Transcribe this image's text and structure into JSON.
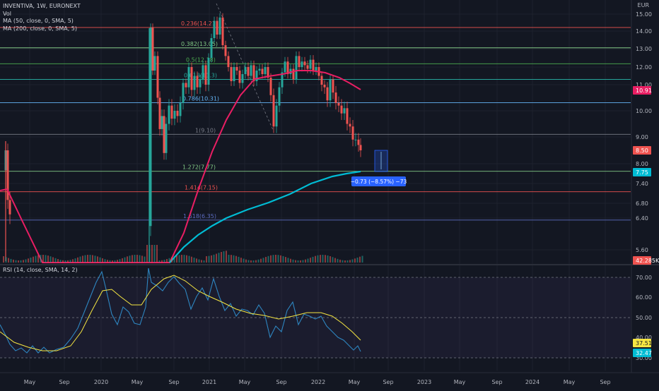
{
  "header": {
    "symbol_line": "INVENTIVA, 1W, EURONEXT",
    "vol_label": "Vol",
    "ma50_label": "MA (50, close, 0, SMA, 5)",
    "ma200_label": "MA (200, close, 0, SMA, 5)",
    "rsi_label": "RSI (14, close, SMA, 14, 2)",
    "currency": "EUR"
  },
  "colors": {
    "background": "#131722",
    "grid": "#1e222d",
    "up": "#26a69a",
    "down": "#ef5350",
    "ma50": "#e91e63",
    "ma200": "#00bcd4",
    "rsi": "#2e86c1",
    "rsi_ma": "#f5e642",
    "measure": "#2962ff"
  },
  "chart_data": {
    "type": "candlestick",
    "x_axis_labels": [
      "May",
      "Sep",
      "2020",
      "May",
      "Sep",
      "2021",
      "May",
      "Sep",
      "2022",
      "May",
      "Sep",
      "2023",
      "May",
      "Sep",
      "2024",
      "May",
      "Sep"
    ],
    "price_axis_ticks": [
      "15.00",
      "14.00",
      "13.00",
      "12.00",
      "11.00",
      "10.00",
      "9.00",
      "8.00",
      "7.40",
      "6.80",
      "6.40",
      "5.60"
    ],
    "rsi_axis_ticks": [
      "70.00",
      "60.00",
      "50.00",
      "40.00",
      "30.00"
    ],
    "fib_levels": [
      {
        "label": "0.236(14.21)",
        "value": 14.21,
        "color": "#ef5350"
      },
      {
        "label": "0.382(13.05)",
        "value": 13.05,
        "color": "#81c784"
      },
      {
        "label": "0.5(12.18)",
        "value": 12.18,
        "color": "#4caf50"
      },
      {
        "label": "0.618(11.3)",
        "value": 11.3,
        "color": "#26a69a"
      },
      {
        "label": "0.786(10.31)",
        "value": 10.31,
        "color": "#64b5f6"
      },
      {
        "label": "1(9.10)",
        "value": 9.1,
        "color": "#787b86"
      },
      {
        "label": "1.272(7.77)",
        "value": 7.77,
        "color": "#81c784"
      },
      {
        "label": "1.414(7.15)",
        "value": 7.15,
        "color": "#ef5350"
      },
      {
        "label": "1.618(6.35)",
        "value": 6.35,
        "color": "#5c6bc0"
      }
    ],
    "price_badges": [
      {
        "value": "10.91",
        "color": "#e91e63"
      },
      {
        "value": "8.50",
        "color": "#ef5350"
      },
      {
        "value": "7.75",
        "color": "#00bcd4"
      },
      {
        "value": "42.285K",
        "color": "#ef5350"
      }
    ],
    "rsi_badges": [
      {
        "value": "37.51",
        "color": "#f5e642"
      },
      {
        "value": "32.47",
        "color": "#00bcd4"
      }
    ],
    "measure_label": "−0.73 (−8.57%) −73",
    "rsi_band": {
      "upper": 70,
      "lower": 30
    }
  }
}
